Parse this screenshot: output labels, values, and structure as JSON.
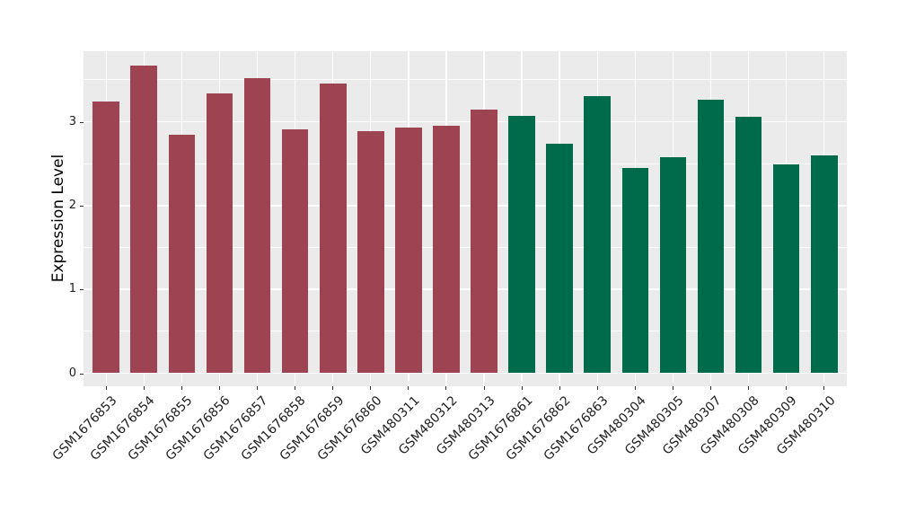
{
  "figure": {
    "background": "#ffffff",
    "panel_background": "#ebebeb",
    "grid_color": "#ffffff",
    "axis_text_color": "#1f1f1f",
    "tick_color": "#333333"
  },
  "chart_data": {
    "type": "bar",
    "title": "",
    "xlabel": "",
    "ylabel": "Expression Level",
    "ylim": [
      0,
      3.84
    ],
    "yticks": [
      0,
      1,
      2,
      3
    ],
    "grid": "white major gridlines at integer y values and at each category center, white minor gridlines at 0.5 steps, on gray panel",
    "legend_position": "none",
    "categories": [
      "GSM1676853",
      "GSM1676854",
      "GSM1676855",
      "GSM1676856",
      "GSM1676857",
      "GSM1676858",
      "GSM1676859",
      "GSM1676860",
      "GSM480311",
      "GSM480312",
      "GSM480313",
      "GSM1676861",
      "GSM1676862",
      "GSM1676863",
      "GSM480304",
      "GSM480305",
      "GSM480307",
      "GSM480308",
      "GSM480309",
      "GSM480310"
    ],
    "values": [
      3.24,
      3.67,
      2.85,
      3.34,
      3.52,
      2.91,
      3.46,
      2.89,
      2.93,
      2.95,
      3.15,
      3.07,
      2.74,
      3.31,
      2.45,
      2.58,
      3.26,
      3.06,
      2.49,
      2.6
    ],
    "bar_group": [
      "A",
      "A",
      "A",
      "A",
      "A",
      "A",
      "A",
      "A",
      "A",
      "A",
      "A",
      "B",
      "B",
      "B",
      "B",
      "B",
      "B",
      "B",
      "B",
      "B"
    ],
    "group_colors": {
      "A": "#9d4352",
      "B": "#006b4a"
    }
  }
}
